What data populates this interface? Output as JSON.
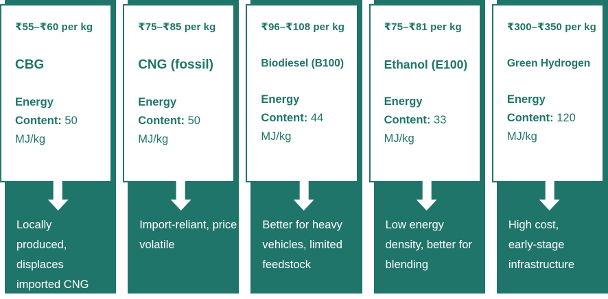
{
  "theme": {
    "accent_teal": "#20756A",
    "card_background": "#FFFFFF",
    "note_text_color": "#FFFFFF"
  },
  "cards": [
    {
      "price": "₹55–₹60 per kg",
      "name": "CBG",
      "energy_label": "Energy Content:",
      "energy_value": "50 MJ/kg",
      "note": "Locally produced, displaces imported CNG"
    },
    {
      "price": "₹75–₹85 per kg",
      "name": "CNG (fossil)",
      "energy_label": "Energy Content:",
      "energy_value": "50 MJ/kg",
      "note": "Import-reliant, price volatile"
    },
    {
      "price": "₹96–₹108 per kg",
      "name": "Biodiesel (B100)",
      "energy_label": "Energy Content:",
      "energy_value": "44 MJ/kg",
      "note": "Better for heavy vehicles, limited feedstock"
    },
    {
      "price": "₹75–₹81 per kg",
      "name": "Ethanol (E100)",
      "energy_label": "Energy Content:",
      "energy_value": "33 MJ/kg",
      "note": "Low energy density, better for blending"
    },
    {
      "price": "₹300–₹350 per kg",
      "name": "Green Hydrogen",
      "energy_label": "Energy Content:",
      "energy_value": "120 MJ/kg",
      "note": "High cost, early-stage infrastructure"
    }
  ]
}
